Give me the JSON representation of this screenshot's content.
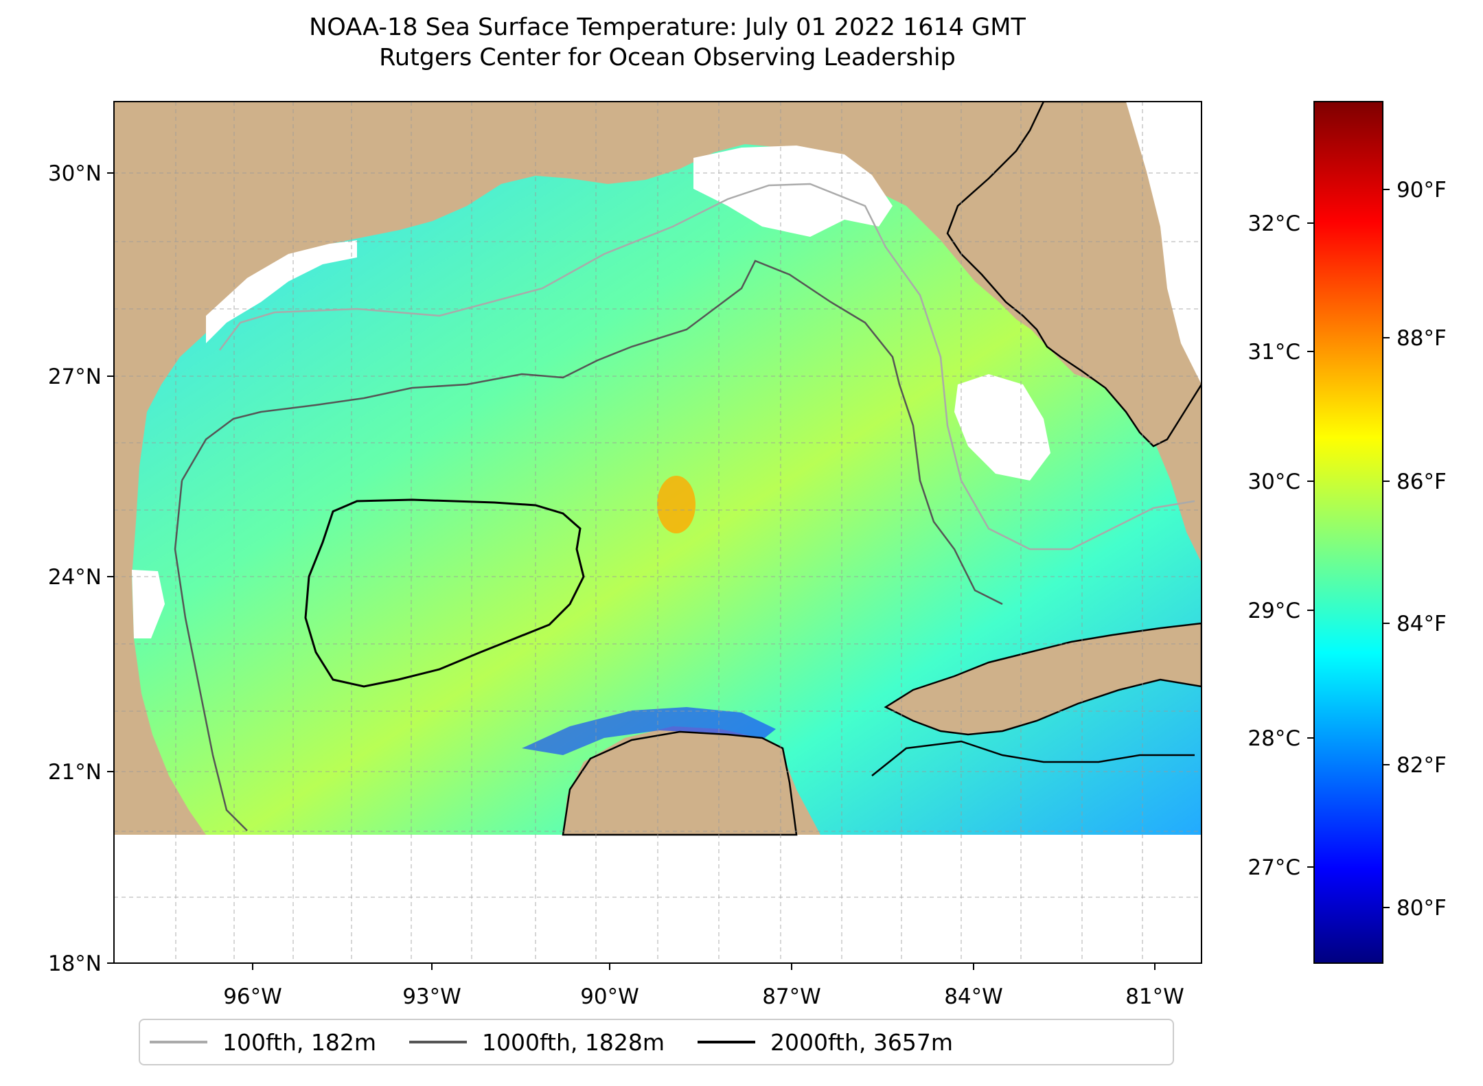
{
  "title": {
    "line1": "NOAA-18 Sea Surface Temperature: July 01 2022 1614 GMT",
    "line2": "Rutgers Center for Ocean Observing Leadership"
  },
  "map": {
    "lon_range": [
      -98,
      -80.3
    ],
    "lat_range": [
      18,
      31
    ],
    "lon_ticks": [
      "96°W",
      "93°W",
      "90°W",
      "87°W",
      "84°W",
      "81°W"
    ],
    "lat_ticks": [
      "30°N",
      "27°N",
      "24°N",
      "21°N",
      "18°N"
    ],
    "land_color": "#CFB18A",
    "no_data_color": "#FFFFFF"
  },
  "colorbar": {
    "celsius_ticks": [
      "32°C",
      "31°C",
      "30°C",
      "29°C",
      "28°C",
      "27°C"
    ],
    "fahrenheit_ticks": [
      "90°F",
      "88°F",
      "86°F",
      "84°F",
      "82°F",
      "80°F"
    ],
    "colormap": "jet",
    "min_c": 26.2,
    "max_c": 32.8
  },
  "legend": {
    "items": [
      {
        "label": "100fth, 182m",
        "color": "#aaaaaa"
      },
      {
        "label": "1000fth, 1828m",
        "color": "#555555"
      },
      {
        "label": "2000fth, 3657m",
        "color": "#000000"
      }
    ]
  }
}
